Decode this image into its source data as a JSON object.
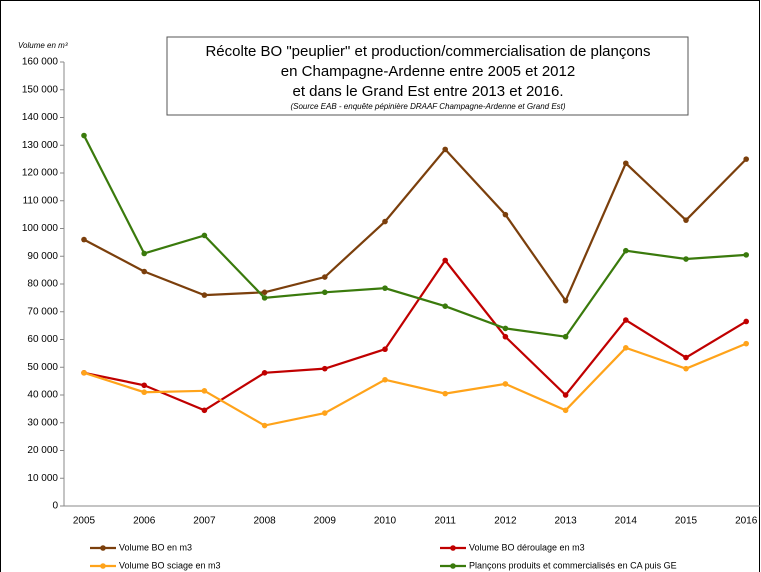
{
  "chart_data": {
    "type": "line",
    "title": [
      "Récolte BO \"peuplier\" et production/commercialisation de plançons",
      "en Champagne-Ardenne entre 2005 et 2012",
      "et dans le Grand Est entre 2013 et 2016."
    ],
    "subtitle": "(Source EAB - enquête pépinière DRAAF Champagne-Ardenne et Grand Est)",
    "y_label": "Volume en m³",
    "categories": [
      "2005",
      "2006",
      "2007",
      "2008",
      "2009",
      "2010",
      "2011",
      "2012",
      "2013",
      "2014",
      "2015",
      "2016"
    ],
    "series": [
      {
        "name": "Volume BO en m3",
        "color": "#7b3f0c",
        "values": [
          96000,
          84500,
          76000,
          77000,
          82500,
          102500,
          128500,
          105000,
          74000,
          123500,
          103000,
          125000
        ]
      },
      {
        "name": "Volume BO déroulage en m3",
        "color": "#c00000",
        "values": [
          48000,
          43500,
          34500,
          48000,
          49500,
          56500,
          88500,
          61000,
          40000,
          67000,
          53500,
          66500
        ]
      },
      {
        "name": "Volume BO sciage en m3",
        "color": "#ffa31a",
        "values": [
          48000,
          41000,
          41500,
          29000,
          33500,
          45500,
          40500,
          44000,
          34500,
          57000,
          49500,
          58500
        ]
      },
      {
        "name": "Plançons produits et commercialisés en CA puis GE",
        "color": "#3a7a0c",
        "values": [
          133500,
          91000,
          97500,
          75000,
          77000,
          78500,
          72000,
          64000,
          61000,
          92000,
          89000,
          90500
        ]
      }
    ],
    "ylim": [
      0,
      160000
    ],
    "yticks": [
      0,
      {
        "value": 10000,
        "label": "10 000"
      },
      {
        "value": 20000,
        "label": "20 000"
      },
      {
        "value": 30000,
        "label": "30 000"
      },
      {
        "value": 40000,
        "label": "40 000"
      },
      {
        "value": 50000,
        "label": "50 000"
      },
      {
        "value": 60000,
        "label": "60 000"
      },
      {
        "value": 70000,
        "label": "70 000"
      },
      {
        "value": 80000,
        "label": "80 000"
      },
      {
        "value": 90000,
        "label": "90 000"
      },
      {
        "value": 100000,
        "label": "100 000"
      },
      {
        "value": 110000,
        "label": "110 000"
      },
      {
        "value": 120000,
        "label": "120 000"
      },
      {
        "value": 130000,
        "label": "130 000"
      },
      {
        "value": 140000,
        "label": "140 000"
      },
      {
        "value": 150000,
        "label": "150 000"
      },
      {
        "value": 160000,
        "label": "160 000"
      }
    ],
    "legend": "bottom"
  }
}
